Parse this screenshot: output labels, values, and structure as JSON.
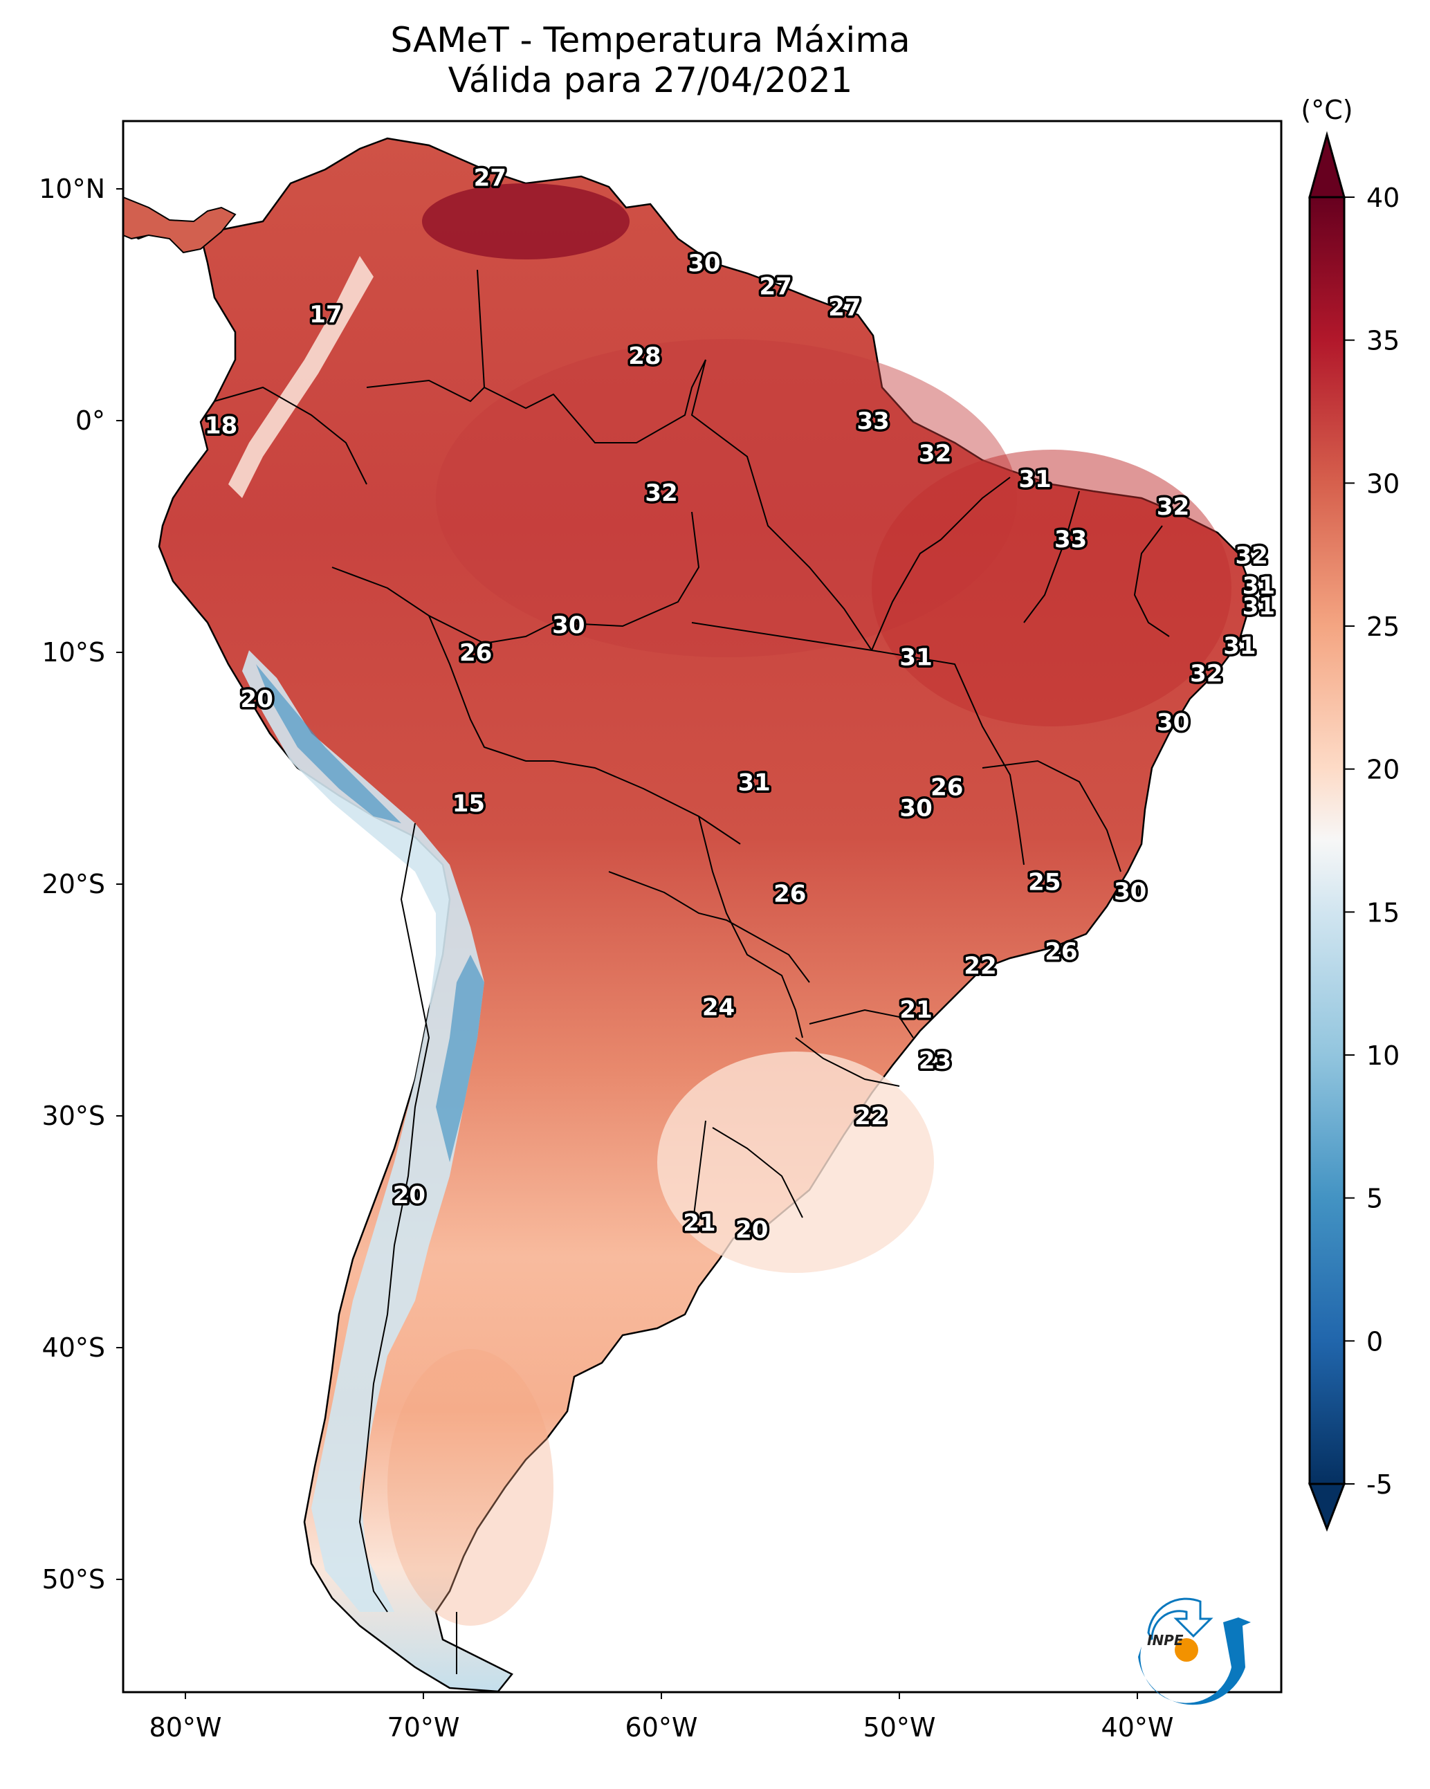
{
  "header": {
    "title_line1": "SAMeT - Temperatura Máxima",
    "title_line2": "Válida para 27/04/2021"
  },
  "colorbar": {
    "unit_label": "(°C)",
    "ticks": [
      "40",
      "35",
      "30",
      "25",
      "20",
      "15",
      "10",
      "5",
      "0",
      "-5"
    ],
    "min": -5,
    "max": 40,
    "extend": "both",
    "colormap": "RdBu_r",
    "stops": [
      {
        "v": -5,
        "color": "#053061"
      },
      {
        "v": 0,
        "color": "#2166ac"
      },
      {
        "v": 5,
        "color": "#4393c3"
      },
      {
        "v": 10,
        "color": "#92c5de"
      },
      {
        "v": 15,
        "color": "#d1e5f0"
      },
      {
        "v": 17.5,
        "color": "#f7f7f7"
      },
      {
        "v": 20,
        "color": "#fddbc7"
      },
      {
        "v": 25,
        "color": "#f4a582"
      },
      {
        "v": 30,
        "color": "#d6604d"
      },
      {
        "v": 35,
        "color": "#b2182b"
      },
      {
        "v": 40,
        "color": "#67001f"
      }
    ]
  },
  "logo": {
    "text": "INPE",
    "primary_color": "#0a78be",
    "accent_color": "#f39200"
  },
  "chart_data": {
    "type": "heatmap",
    "title": "SAMeT - Temperatura Máxima\nVálida para 27/04/2021",
    "variable": "Temperatura Máxima",
    "units": "°C",
    "date": "27/04/2021",
    "xlabel": "",
    "ylabel": "",
    "xlim": [
      -83,
      -33
    ],
    "ylim": [
      -56,
      13
    ],
    "x_ticks": [
      {
        "value": -80,
        "label": "80°W"
      },
      {
        "value": -70,
        "label": "70°W"
      },
      {
        "value": -60,
        "label": "60°W"
      },
      {
        "value": -50,
        "label": "50°W"
      },
      {
        "value": -40,
        "label": "40°W"
      }
    ],
    "y_ticks": [
      {
        "value": 10,
        "label": "10°N"
      },
      {
        "value": 0,
        "label": "0°"
      },
      {
        "value": -10,
        "label": "10°S"
      },
      {
        "value": -20,
        "label": "20°S"
      },
      {
        "value": -30,
        "label": "30°S"
      },
      {
        "value": -40,
        "label": "40°S"
      },
      {
        "value": -50,
        "label": "50°S"
      }
    ],
    "grid": false,
    "legend": "colorbar right",
    "point_labels": [
      {
        "lon": -67.2,
        "lat": 10.5,
        "value": 27
      },
      {
        "lon": -74.1,
        "lat": 4.6,
        "value": 17
      },
      {
        "lon": -78.5,
        "lat": -0.2,
        "value": 18
      },
      {
        "lon": -58.2,
        "lat": 6.8,
        "value": 30
      },
      {
        "lon": -55.2,
        "lat": 5.8,
        "value": 27
      },
      {
        "lon": -52.3,
        "lat": 4.9,
        "value": 27
      },
      {
        "lon": -60.7,
        "lat": 2.8,
        "value": 28
      },
      {
        "lon": -51.1,
        "lat": 0.0,
        "value": 33
      },
      {
        "lon": -48.5,
        "lat": -1.4,
        "value": 32
      },
      {
        "lon": -44.3,
        "lat": -2.5,
        "value": 31
      },
      {
        "lon": -38.5,
        "lat": -3.7,
        "value": 32
      },
      {
        "lon": -42.8,
        "lat": -5.1,
        "value": 33
      },
      {
        "lon": -60.0,
        "lat": -3.1,
        "value": 32
      },
      {
        "lon": -35.2,
        "lat": -5.8,
        "value": 32
      },
      {
        "lon": -34.9,
        "lat": -7.1,
        "value": 31
      },
      {
        "lon": -34.9,
        "lat": -8.0,
        "value": 31
      },
      {
        "lon": -35.7,
        "lat": -9.7,
        "value": 31
      },
      {
        "lon": -37.1,
        "lat": -10.9,
        "value": 32
      },
      {
        "lon": -38.5,
        "lat": -13.0,
        "value": 30
      },
      {
        "lon": -63.9,
        "lat": -8.8,
        "value": 30
      },
      {
        "lon": -67.8,
        "lat": -10.0,
        "value": 26
      },
      {
        "lon": -77.0,
        "lat": -12.0,
        "value": 20
      },
      {
        "lon": -49.3,
        "lat": -10.2,
        "value": 31
      },
      {
        "lon": -56.1,
        "lat": -15.6,
        "value": 31
      },
      {
        "lon": -68.1,
        "lat": -16.5,
        "value": 15
      },
      {
        "lon": -48.0,
        "lat": -15.8,
        "value": 26
      },
      {
        "lon": -49.3,
        "lat": -16.7,
        "value": 30
      },
      {
        "lon": -43.9,
        "lat": -19.9,
        "value": 25
      },
      {
        "lon": -40.3,
        "lat": -20.3,
        "value": 30
      },
      {
        "lon": -54.6,
        "lat": -20.4,
        "value": 26
      },
      {
        "lon": -43.2,
        "lat": -22.9,
        "value": 26
      },
      {
        "lon": -46.6,
        "lat": -23.5,
        "value": 22
      },
      {
        "lon": -57.6,
        "lat": -25.3,
        "value": 24
      },
      {
        "lon": -49.3,
        "lat": -25.4,
        "value": 21
      },
      {
        "lon": -48.5,
        "lat": -27.6,
        "value": 23
      },
      {
        "lon": -51.2,
        "lat": -30.0,
        "value": 22
      },
      {
        "lon": -70.6,
        "lat": -33.4,
        "value": 20
      },
      {
        "lon": -58.4,
        "lat": -34.6,
        "value": 21
      },
      {
        "lon": -56.2,
        "lat": -34.9,
        "value": 20
      }
    ]
  }
}
